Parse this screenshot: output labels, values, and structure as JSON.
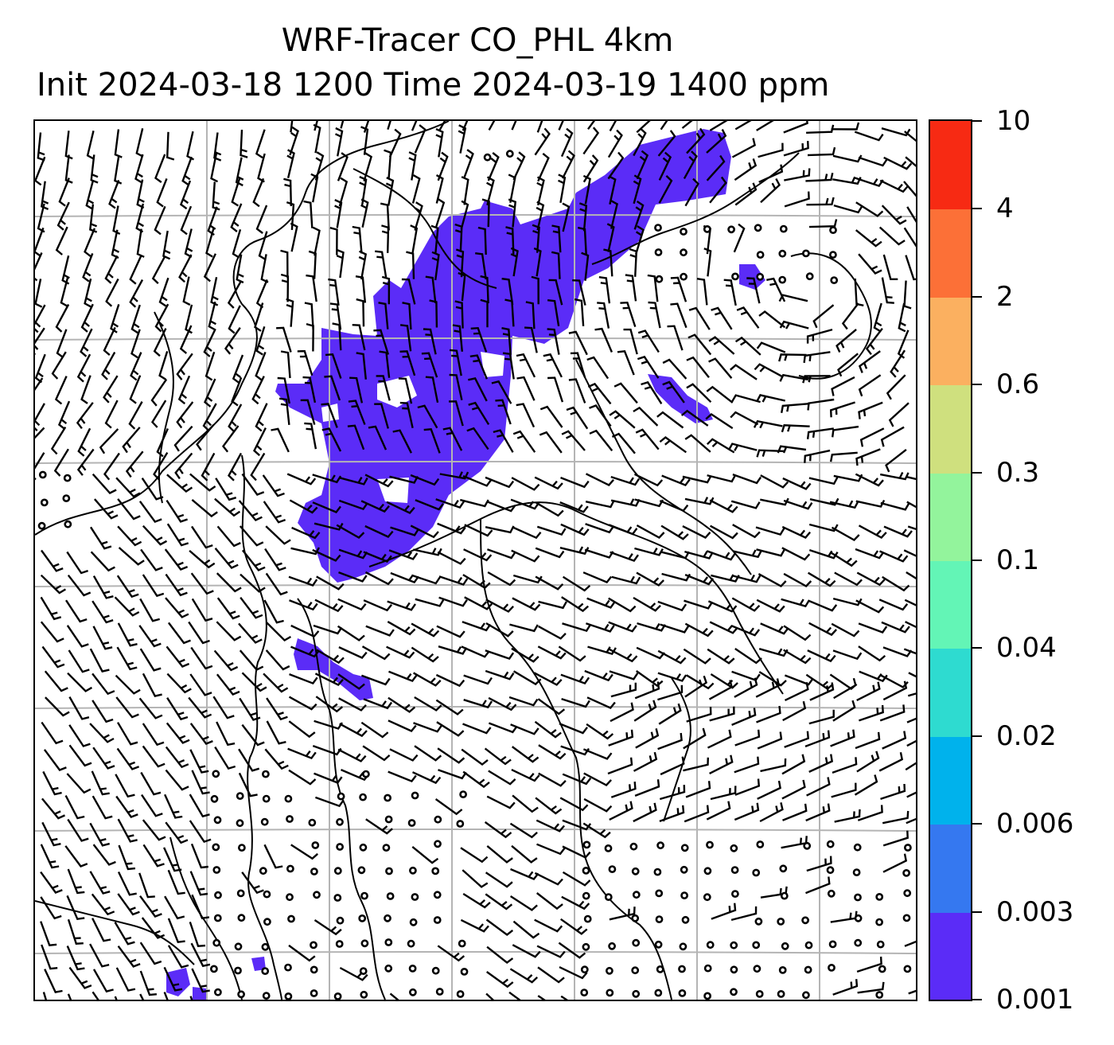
{
  "title": {
    "line1": "WRF-Tracer CO_PHL 4km",
    "line2": "Init 2024-03-18 1200 Time 2024-03-19 1400 ppm"
  },
  "colorbar": {
    "levels": [
      "0.001",
      "0.003",
      "0.006",
      "0.02",
      "0.04",
      "0.1",
      "0.3",
      "0.6",
      "2",
      "4",
      "10"
    ],
    "colors": [
      "#5b2cf7",
      "#3578f0",
      "#00b2ec",
      "#2edbd0",
      "#63f5b6",
      "#93f49c",
      "#cfe07e",
      "#fbb060",
      "#fc7037",
      "#f72a13"
    ]
  },
  "map": {
    "tracer_fill_color": "#5b2cf7",
    "gridline_color": "#b4b4b4",
    "coastline_color": "#000000",
    "symbols": [
      "wind-barbs",
      "calm-circles",
      "coastlines",
      "gridlines"
    ]
  }
}
